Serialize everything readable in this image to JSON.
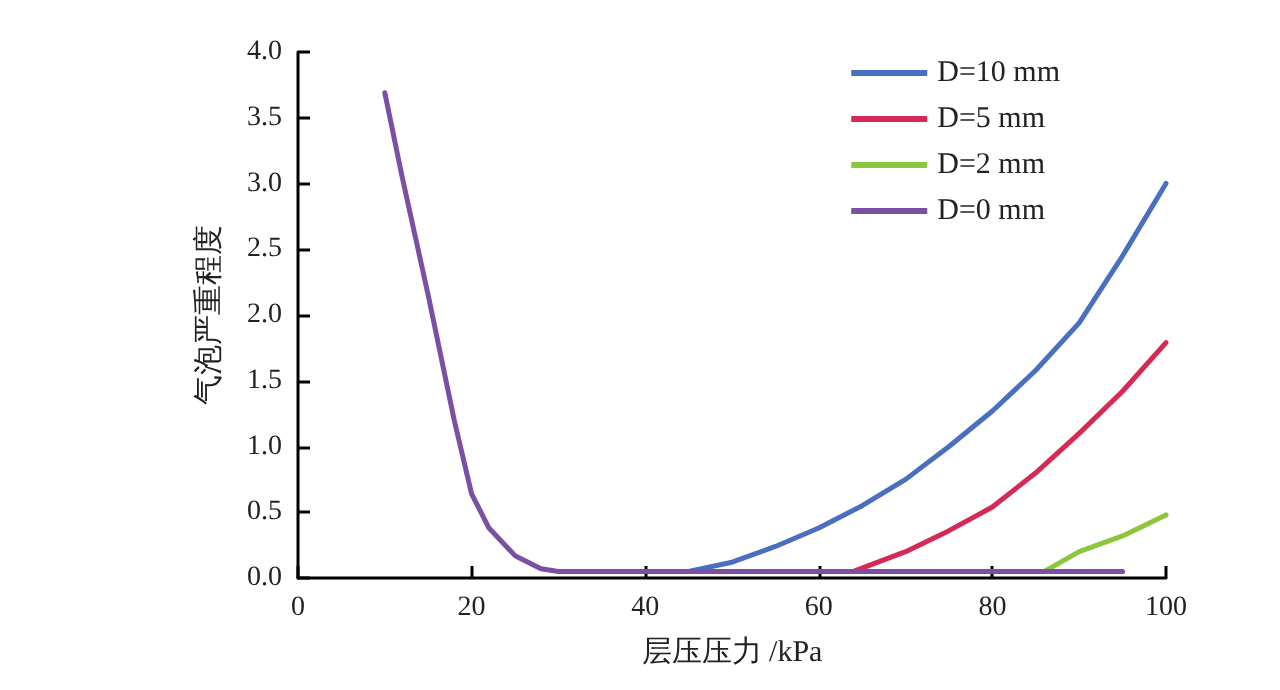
{
  "chart_data": {
    "type": "line",
    "xlabel": "层压压力 /kPa",
    "ylabel": "气泡严重程度",
    "xlim": [
      0,
      100
    ],
    "xticks": [
      0,
      20,
      40,
      60,
      80,
      100
    ],
    "ylim": [
      0,
      4
    ],
    "yticks": [
      {
        "value": 0,
        "label": "0.0"
      },
      {
        "value": 0.5,
        "label": "0.5"
      },
      {
        "value": 1,
        "label": "1.0"
      },
      {
        "value": 1.5,
        "label": "1.5"
      },
      {
        "value": 2,
        "label": "2.0"
      },
      {
        "value": 2.5,
        "label": "2.5"
      },
      {
        "value": 3,
        "label": "3.0"
      },
      {
        "value": 3.5,
        "label": "3.5"
      },
      {
        "value": 4,
        "label": "4.0"
      }
    ],
    "grid": false,
    "legend": "top right",
    "marker": "none",
    "line_style": "solid",
    "series": [
      {
        "name": "D=10 mm",
        "color": "#4a6fc0",
        "x": [
          45,
          50,
          55,
          60,
          65,
          70,
          75,
          80,
          85,
          90,
          95,
          100
        ],
        "values": [
          0.05,
          0.12,
          0.24,
          0.38,
          0.55,
          0.75,
          1.0,
          1.27,
          1.58,
          1.94,
          2.45,
          3.0
        ]
      },
      {
        "name": "D=5 mm",
        "color": "#d42a55",
        "x": [
          64,
          70,
          75,
          80,
          85,
          90,
          95,
          100
        ],
        "values": [
          0.05,
          0.2,
          0.36,
          0.54,
          0.8,
          1.1,
          1.42,
          1.79
        ]
      },
      {
        "name": "D=2 mm",
        "color": "#8cc63f",
        "x": [
          86,
          90,
          95,
          100
        ],
        "values": [
          0.05,
          0.2,
          0.32,
          0.48
        ]
      },
      {
        "name": "D=0 mm",
        "color": "#7b4fa3",
        "x": [
          10,
          12,
          15,
          18,
          20,
          22,
          25,
          28,
          30,
          95
        ],
        "values": [
          3.69,
          3.05,
          2.15,
          1.2,
          0.64,
          0.38,
          0.17,
          0.07,
          0.05,
          0.05
        ]
      }
    ]
  }
}
